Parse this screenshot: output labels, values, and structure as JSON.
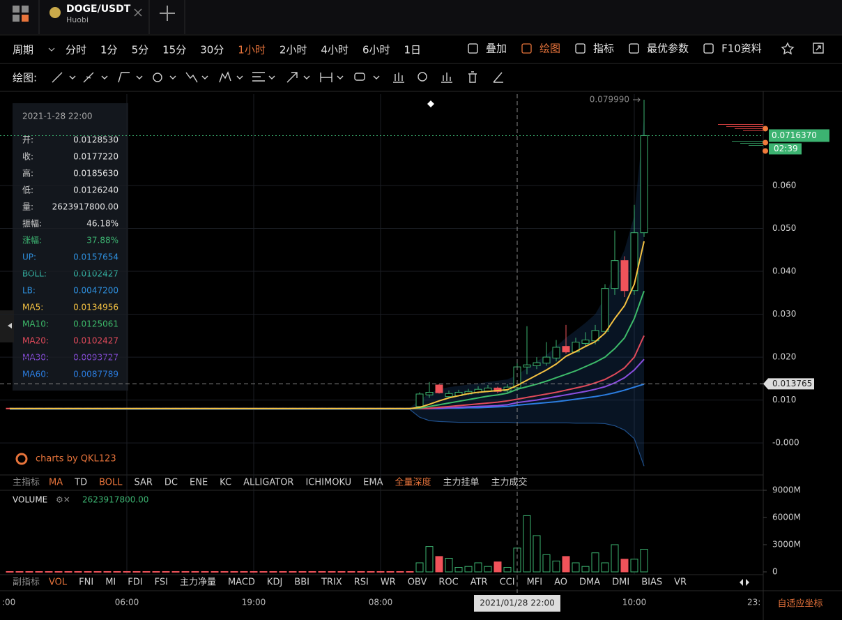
{
  "tab": {
    "symbol": "DOGE/USDT",
    "exchange": "Huobi"
  },
  "periods": {
    "label": "周期",
    "items": [
      "分时",
      "1分",
      "5分",
      "15分",
      "30分",
      "1小时",
      "2小时",
      "4小时",
      "6小时",
      "1日"
    ],
    "active": 5
  },
  "tools": [
    "叠加",
    "绘图",
    "指标",
    "最优参数",
    "F10资料"
  ],
  "active_tool": 1,
  "drawing_label": "绘图:",
  "chart_data": {
    "type": "candlestick",
    "categories": [
      null,
      null,
      null,
      null,
      null,
      null,
      null,
      null,
      null,
      null,
      null,
      null,
      "06:00",
      null,
      null,
      null,
      null,
      null,
      null,
      null,
      null,
      null,
      null,
      null,
      null,
      "19:00",
      null,
      null,
      null,
      null,
      null,
      null,
      null,
      null,
      null,
      null,
      null,
      null,
      "08:00",
      null,
      null,
      null,
      null,
      null,
      null,
      null,
      null,
      null,
      null,
      null,
      null,
      null,
      null,
      null,
      null,
      null,
      null,
      null,
      null,
      null,
      null,
      null,
      null,
      null,
      "10:00",
      null
    ],
    "open": [
      0.0081,
      0.0081,
      0.0081,
      0.0081,
      0.0081,
      0.0081,
      0.0081,
      0.0081,
      0.0081,
      0.0081,
      0.0081,
      0.0081,
      0.0081,
      0.0081,
      0.0081,
      0.0081,
      0.0081,
      0.0081,
      0.0081,
      0.0081,
      0.0081,
      0.0081,
      0.0081,
      0.0081,
      0.0081,
      0.0081,
      0.0081,
      0.0081,
      0.0081,
      0.0081,
      0.0081,
      0.0081,
      0.0081,
      0.0081,
      0.0081,
      0.0081,
      0.0081,
      0.0081,
      0.0081,
      0.0081,
      0.0081,
      0.0081,
      0.0085,
      0.0112,
      0.0135,
      0.0108,
      0.011,
      0.0114,
      0.0118,
      0.0121,
      0.0128,
      0.0121,
      0.012853,
      0.0177,
      0.018,
      0.0186,
      0.0198,
      0.0225,
      0.0212,
      0.0232,
      0.0238,
      0.026,
      0.036,
      0.0425,
      0.0355,
      0.049
    ],
    "close": [
      0.008,
      0.008,
      0.008,
      0.008,
      0.008,
      0.008,
      0.008,
      0.008,
      0.008,
      0.008,
      0.008,
      0.008,
      0.008,
      0.008,
      0.008,
      0.008,
      0.008,
      0.008,
      0.008,
      0.008,
      0.008,
      0.008,
      0.008,
      0.008,
      0.008,
      0.008,
      0.008,
      0.008,
      0.008,
      0.008,
      0.008,
      0.008,
      0.008,
      0.008,
      0.008,
      0.008,
      0.008,
      0.008,
      0.008,
      0.008,
      0.008,
      0.008,
      0.0114,
      0.0118,
      0.0117,
      0.0115,
      0.0118,
      0.012,
      0.0125,
      0.0128,
      0.012,
      0.013,
      0.017722,
      0.0182,
      0.0187,
      0.02,
      0.0223,
      0.0212,
      0.0235,
      0.024,
      0.0262,
      0.036,
      0.0425,
      0.0355,
      0.049,
      0.071637
    ],
    "high": [
      0.0082,
      0.0082,
      0.0082,
      0.0082,
      0.0082,
      0.0082,
      0.0082,
      0.0082,
      0.0082,
      0.0082,
      0.0082,
      0.0082,
      0.0082,
      0.0082,
      0.0082,
      0.0082,
      0.0082,
      0.0082,
      0.0082,
      0.0082,
      0.0082,
      0.0082,
      0.0082,
      0.0082,
      0.0082,
      0.0082,
      0.0082,
      0.0082,
      0.0082,
      0.0082,
      0.0082,
      0.0082,
      0.0082,
      0.0082,
      0.0082,
      0.0082,
      0.0082,
      0.0082,
      0.0082,
      0.0082,
      0.0082,
      0.0082,
      0.0118,
      0.0142,
      0.0137,
      0.0122,
      0.0124,
      0.0126,
      0.0132,
      0.0135,
      0.0131,
      0.0137,
      0.018563,
      0.0272,
      0.02,
      0.0235,
      0.024,
      0.0275,
      0.0245,
      0.0258,
      0.0275,
      0.037,
      0.0495,
      0.0435,
      0.0555,
      0.07999
    ],
    "low": [
      0.0079,
      0.0079,
      0.0079,
      0.0079,
      0.0079,
      0.0079,
      0.0079,
      0.0079,
      0.0079,
      0.0079,
      0.0079,
      0.0079,
      0.0079,
      0.0079,
      0.0079,
      0.0079,
      0.0079,
      0.0079,
      0.0079,
      0.0079,
      0.0079,
      0.0079,
      0.0079,
      0.0079,
      0.0079,
      0.0079,
      0.0079,
      0.0079,
      0.0079,
      0.0079,
      0.0079,
      0.0079,
      0.0079,
      0.0079,
      0.0079,
      0.0079,
      0.0079,
      0.0079,
      0.0079,
      0.0079,
      0.0079,
      0.0079,
      0.0078,
      0.0105,
      0.0115,
      0.0104,
      0.0108,
      0.0112,
      0.0115,
      0.0118,
      0.0116,
      0.0118,
      0.012624,
      0.016,
      0.0172,
      0.018,
      0.019,
      0.0208,
      0.021,
      0.0225,
      0.023,
      0.0255,
      0.0345,
      0.034,
      0.0345,
      0.048
    ],
    "up_color": "#3cb371",
    "down_color": "#f0535a",
    "ylim": [
      -0.0073,
      0.0813
    ],
    "yticks": [
      {
        "value": 0.06,
        "label": "0.060"
      },
      {
        "value": 0.05,
        "label": "0.050"
      },
      {
        "value": 0.04,
        "label": "0.040"
      },
      {
        "value": 0.03,
        "label": "0.030"
      },
      {
        "value": 0.02,
        "label": "0.020"
      },
      {
        "value": 0.01,
        "label": "0.010"
      },
      {
        "value": 0,
        "label": "-0.000"
      }
    ],
    "grid": true,
    "series": [
      {
        "name": "MA60",
        "color": "#2b7de0",
        "values": [
          0.008,
          0.008,
          0.008,
          0.008,
          0.008,
          0.008,
          0.008,
          0.008,
          0.008,
          0.008,
          0.008,
          0.008,
          0.008,
          0.008,
          0.008,
          0.008,
          0.008,
          0.008,
          0.008,
          0.008,
          0.008,
          0.008,
          0.008,
          0.008,
          0.008,
          0.008,
          0.008,
          0.008,
          0.008,
          0.008,
          0.008,
          0.008,
          0.008,
          0.008,
          0.008,
          0.008,
          0.008,
          0.008,
          0.008,
          0.008,
          0.008,
          0.008,
          0.008,
          0.008,
          0.008,
          0.0081,
          0.0081,
          0.0082,
          0.0082,
          0.0083,
          0.0084,
          0.0085,
          0.0088,
          0.009,
          0.0092,
          0.0094,
          0.0096,
          0.0099,
          0.0102,
          0.0105,
          0.0108,
          0.0112,
          0.0117,
          0.0123,
          0.013,
          0.0137
        ]
      },
      {
        "name": "MA30",
        "color": "#8b4fe0",
        "values": [
          0.008,
          0.008,
          0.008,
          0.008,
          0.008,
          0.008,
          0.008,
          0.008,
          0.008,
          0.008,
          0.008,
          0.008,
          0.008,
          0.008,
          0.008,
          0.008,
          0.008,
          0.008,
          0.008,
          0.008,
          0.008,
          0.008,
          0.008,
          0.008,
          0.008,
          0.008,
          0.008,
          0.008,
          0.008,
          0.008,
          0.008,
          0.008,
          0.008,
          0.008,
          0.008,
          0.008,
          0.008,
          0.008,
          0.008,
          0.008,
          0.008,
          0.008,
          0.008,
          0.008,
          0.0081,
          0.0082,
          0.0083,
          0.0084,
          0.0085,
          0.0086,
          0.0087,
          0.0089,
          0.0094,
          0.0097,
          0.01,
          0.0104,
          0.0108,
          0.0112,
          0.0116,
          0.012,
          0.0125,
          0.0131,
          0.014,
          0.0152,
          0.017,
          0.0195
        ]
      },
      {
        "name": "MA20",
        "color": "#e04a5a",
        "values": [
          0.008,
          0.008,
          0.008,
          0.008,
          0.008,
          0.008,
          0.008,
          0.008,
          0.008,
          0.008,
          0.008,
          0.008,
          0.008,
          0.008,
          0.008,
          0.008,
          0.008,
          0.008,
          0.008,
          0.008,
          0.008,
          0.008,
          0.008,
          0.008,
          0.008,
          0.008,
          0.008,
          0.008,
          0.008,
          0.008,
          0.008,
          0.008,
          0.008,
          0.008,
          0.008,
          0.008,
          0.008,
          0.008,
          0.008,
          0.008,
          0.008,
          0.008,
          0.008,
          0.0081,
          0.0083,
          0.0085,
          0.0087,
          0.0089,
          0.0091,
          0.0093,
          0.0095,
          0.0098,
          0.0102,
          0.0106,
          0.011,
          0.0114,
          0.0118,
          0.0123,
          0.0128,
          0.0133,
          0.014,
          0.0148,
          0.016,
          0.0175,
          0.02,
          0.025
        ]
      },
      {
        "name": "MA10",
        "color": "#3dbb6a",
        "values": [
          0.008,
          0.008,
          0.008,
          0.008,
          0.008,
          0.008,
          0.008,
          0.008,
          0.008,
          0.008,
          0.008,
          0.008,
          0.008,
          0.008,
          0.008,
          0.008,
          0.008,
          0.008,
          0.008,
          0.008,
          0.008,
          0.008,
          0.008,
          0.008,
          0.008,
          0.008,
          0.008,
          0.008,
          0.008,
          0.008,
          0.008,
          0.008,
          0.008,
          0.008,
          0.008,
          0.008,
          0.008,
          0.008,
          0.008,
          0.008,
          0.008,
          0.008,
          0.0081,
          0.0085,
          0.0089,
          0.0093,
          0.0097,
          0.0101,
          0.0105,
          0.0109,
          0.0112,
          0.0116,
          0.0125,
          0.0131,
          0.0137,
          0.0144,
          0.0152,
          0.016,
          0.0168,
          0.0178,
          0.0188,
          0.02,
          0.022,
          0.0245,
          0.029,
          0.0354
        ]
      },
      {
        "name": "MA5",
        "color": "#f5c242",
        "values": [
          0.008,
          0.008,
          0.008,
          0.008,
          0.008,
          0.008,
          0.008,
          0.008,
          0.008,
          0.008,
          0.008,
          0.008,
          0.008,
          0.008,
          0.008,
          0.008,
          0.008,
          0.008,
          0.008,
          0.008,
          0.008,
          0.008,
          0.008,
          0.008,
          0.008,
          0.008,
          0.008,
          0.008,
          0.008,
          0.008,
          0.008,
          0.008,
          0.008,
          0.008,
          0.008,
          0.008,
          0.008,
          0.008,
          0.008,
          0.008,
          0.008,
          0.008,
          0.0083,
          0.009,
          0.0098,
          0.0105,
          0.011,
          0.0115,
          0.0118,
          0.012,
          0.0122,
          0.0124,
          0.0134,
          0.0146,
          0.0158,
          0.017,
          0.0184,
          0.0202,
          0.0213,
          0.0225,
          0.0236,
          0.0256,
          0.029,
          0.032,
          0.037,
          0.047
        ]
      }
    ],
    "band": {
      "color": "#1f4f8a",
      "upper": [
        0.0082,
        0.0082,
        0.0082,
        0.0082,
        0.0082,
        0.0082,
        0.0082,
        0.0082,
        0.0082,
        0.0082,
        0.0082,
        0.0082,
        0.0082,
        0.0082,
        0.0082,
        0.0082,
        0.0082,
        0.0082,
        0.0082,
        0.0082,
        0.0082,
        0.0082,
        0.0082,
        0.0082,
        0.0082,
        0.0082,
        0.0082,
        0.0082,
        0.0082,
        0.0082,
        0.0082,
        0.0082,
        0.0082,
        0.0082,
        0.0082,
        0.0082,
        0.0082,
        0.0082,
        0.0082,
        0.0082,
        0.0082,
        0.0082,
        0.01,
        0.0115,
        0.0125,
        0.013,
        0.0133,
        0.0136,
        0.0139,
        0.0142,
        0.0145,
        0.0148,
        0.0158,
        0.0175,
        0.019,
        0.0205,
        0.0225,
        0.0245,
        0.0262,
        0.028,
        0.03,
        0.034,
        0.04,
        0.045,
        0.053,
        0.076
      ],
      "lower": [
        0.0078,
        0.0078,
        0.0078,
        0.0078,
        0.0078,
        0.0078,
        0.0078,
        0.0078,
        0.0078,
        0.0078,
        0.0078,
        0.0078,
        0.0078,
        0.0078,
        0.0078,
        0.0078,
        0.0078,
        0.0078,
        0.0078,
        0.0078,
        0.0078,
        0.0078,
        0.0078,
        0.0078,
        0.0078,
        0.0078,
        0.0078,
        0.0078,
        0.0078,
        0.0078,
        0.0078,
        0.0078,
        0.0078,
        0.0078,
        0.0078,
        0.0078,
        0.0078,
        0.0078,
        0.0078,
        0.0078,
        0.0078,
        0.0078,
        0.006,
        0.0052,
        0.005,
        0.0049,
        0.0048,
        0.0048,
        0.0048,
        0.0048,
        0.0048,
        0.0048,
        0.0047,
        0.0047,
        0.0047,
        0.0047,
        0.0047,
        0.0047,
        0.0046,
        0.0046,
        0.0046,
        0.0045,
        0.004,
        0.003,
        0.001,
        -0.0054
      ]
    },
    "last_price": {
      "value": 0.071637,
      "label": "0.0716370"
    },
    "countdown": "02:39",
    "max_marker": {
      "value": 0.07999,
      "label": "0.079990"
    },
    "crosshair": {
      "time": "2021/01/28 22:00",
      "price": {
        "value": 0.013765,
        "label": "0.013765"
      }
    },
    "x_edge_labels": [
      ":00",
      "23:"
    ],
    "volume": {
      "type": "bar",
      "title": "VOLUME",
      "value_label": "2623917800.00",
      "values": [
        40000000,
        40000000,
        40000000,
        40000000,
        40000000,
        40000000,
        40000000,
        40000000,
        40000000,
        40000000,
        40000000,
        40000000,
        40000000,
        40000000,
        40000000,
        40000000,
        40000000,
        40000000,
        40000000,
        40000000,
        40000000,
        40000000,
        40000000,
        40000000,
        40000000,
        40000000,
        40000000,
        40000000,
        40000000,
        40000000,
        40000000,
        40000000,
        40000000,
        40000000,
        40000000,
        40000000,
        40000000,
        40000000,
        40000000,
        40000000,
        40000000,
        40000000,
        1000000000,
        2800000000,
        1700000000,
        1500000000,
        500000000,
        600000000,
        1000000000,
        600000000,
        1100000000,
        500000000,
        2623917800,
        6200000000,
        4000000000,
        1900000000,
        1200000000,
        1700000000,
        1000000000,
        600000000,
        2100000000,
        1000000000,
        3000000000,
        1400000000,
        1400000000,
        2500000000
      ],
      "ylim": [
        0,
        9000000000
      ],
      "yticks": [
        {
          "value": 9000000000,
          "label": "9000M"
        },
        {
          "value": 6000000000,
          "label": "6000M"
        },
        {
          "value": 3000000000,
          "label": "3000M"
        },
        0
      ]
    }
  },
  "info": {
    "date": "2021-1-28 22:00",
    "rows": [
      {
        "label": "开:",
        "value": "0.0128530",
        "color": "#e6e6e6"
      },
      {
        "label": "收:",
        "value": "0.0177220",
        "color": "#e6e6e6"
      },
      {
        "label": "高:",
        "value": "0.0185630",
        "color": "#e6e6e6"
      },
      {
        "label": "低:",
        "value": "0.0126240",
        "color": "#e6e6e6"
      },
      {
        "label": "量:",
        "value": "2623917800.00",
        "color": "#e6e6e6"
      },
      {
        "label": "振幅:",
        "value": "46.18%",
        "color": "#e6e6e6"
      },
      {
        "label": "涨幅:",
        "value": "37.88%",
        "color": "#3cb371"
      },
      {
        "label": "UP:",
        "value": "0.0157654",
        "color": "#2e8fdd"
      },
      {
        "label": "BOLL:",
        "value": "0.0102427",
        "color": "#35b5a5"
      },
      {
        "label": "LB:",
        "value": "0.0047200",
        "color": "#2e8fdd"
      },
      {
        "label": "MA5:",
        "value": "0.0134956",
        "color": "#f5c242"
      },
      {
        "label": "MA10:",
        "value": "0.0125061",
        "color": "#3dbb6a"
      },
      {
        "label": "MA20:",
        "value": "0.0102427",
        "color": "#e04a5a"
      },
      {
        "label": "MA30:",
        "value": "0.0093727",
        "color": "#8b4fe0"
      },
      {
        "label": "MA60:",
        "value": "0.0087789",
        "color": "#2b7de0"
      }
    ]
  },
  "main_indicators": {
    "label": "主指标",
    "items": [
      "MA",
      "TD",
      "BOLL",
      "SAR",
      "DC",
      "ENE",
      "KC",
      "ALLIGATOR",
      "ICHIMOKU",
      "EMA",
      "全量深度",
      "主力挂单",
      "主力成交"
    ],
    "active": [
      0,
      2,
      10
    ]
  },
  "sub_indicators": {
    "label": "副指标",
    "items": [
      "VOL",
      "FNI",
      "MI",
      "FDI",
      "FSI",
      "主力净量",
      "MACD",
      "KDJ",
      "BBI",
      "TRIX",
      "RSI",
      "WR",
      "OBV",
      "ROC",
      "ATR",
      "CCI",
      "MFI",
      "AO",
      "DMA",
      "DMI",
      "BIAS",
      "VR"
    ],
    "active": [
      0
    ]
  },
  "watermark": "charts by QKL123",
  "auto_scale": "自适应坐标"
}
